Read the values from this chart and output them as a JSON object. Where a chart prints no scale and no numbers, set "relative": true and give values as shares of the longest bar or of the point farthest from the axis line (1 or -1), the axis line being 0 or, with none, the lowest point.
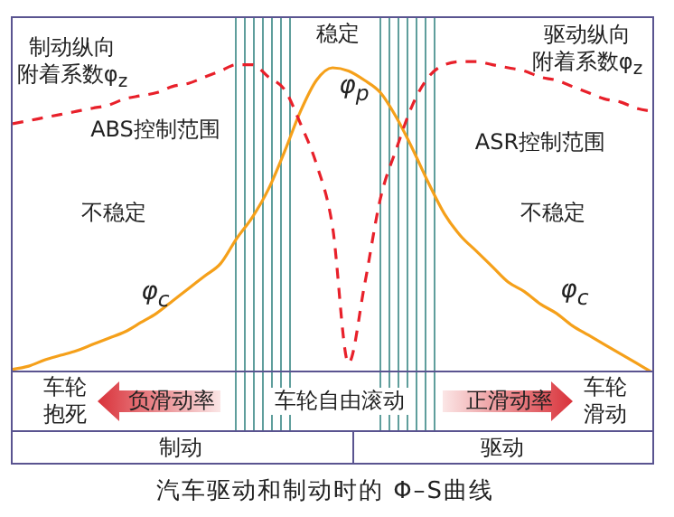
{
  "chart_data": {
    "type": "line",
    "title": "汽车驱动和制动时的 Φ–S曲线",
    "relative": true,
    "categories": [
      null,
      null,
      null,
      null,
      null,
      null,
      null,
      null,
      null,
      null,
      null,
      null,
      null,
      null,
      null,
      null,
      null,
      null,
      null,
      null,
      null,
      null,
      null,
      null,
      null,
      null,
      null,
      null,
      null,
      null,
      null,
      null,
      null,
      null,
      null,
      null,
      null,
      null,
      null,
      null,
      null
    ],
    "series": [
      {
        "color": "#f5a01a",
        "values": [
          0.01,
          0.02,
          0.04,
          0.055,
          0.07,
          0.09,
          0.11,
          0.13,
          0.16,
          0.19,
          0.23,
          0.27,
          0.31,
          0.35,
          0.43,
          0.5,
          0.59,
          0.71,
          0.84,
          0.94,
          0.98,
          0.97,
          0.94,
          0.9,
          0.82,
          0.72,
          0.61,
          0.51,
          0.44,
          0.39,
          0.34,
          0.29,
          0.26,
          0.22,
          0.19,
          0.15,
          0.12,
          0.09,
          0.06,
          0.03,
          0
        ]
      },
      {
        "color": "#e8202a",
        "line_style": "dashed",
        "values": [
          0.8,
          0.81,
          0.82,
          0.83,
          0.84,
          0.85,
          0.86,
          0.88,
          0.89,
          0.9,
          0.92,
          0.93,
          0.95,
          0.97,
          0.99,
          0.99,
          0.95,
          0.91,
          0.8,
          0.67,
          0.47,
          0.03,
          0.28,
          0.56,
          0.72,
          0.86,
          0.95,
          0.99,
          1,
          1,
          0.99,
          0.98,
          0.97,
          0.95,
          0.94,
          0.92,
          0.9,
          0.88,
          0.87,
          0.85,
          0.84
        ]
      }
    ],
    "annotations": [
      "稳定",
      "不稳定",
      "不稳定",
      "φ$_{p}$",
      "φ$_{c}$",
      "φ$_{c}$",
      "制动纵向附着系数φ$_{z}$",
      "驱动纵向附着系数φ$_{z}$",
      "车轮抱死",
      "负滑动率",
      "车轮自由滚动",
      "正滑动率",
      "车轮滑动",
      "制动",
      "驱动",
      "ABS控制范围",
      "ASR控制范围"
    ]
  }
}
